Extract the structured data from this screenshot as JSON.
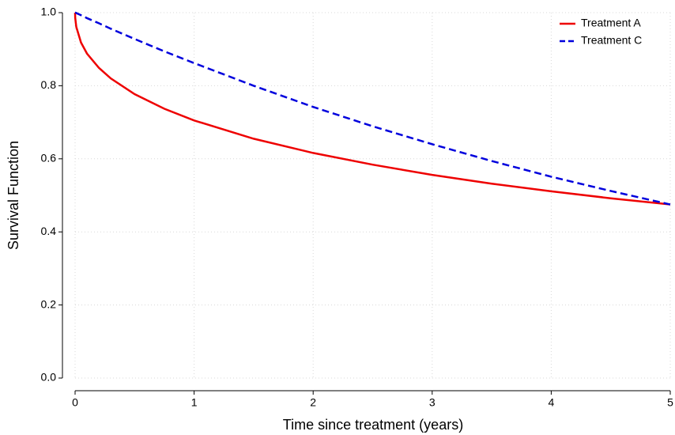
{
  "chart_data": {
    "type": "line",
    "xlabel": "Time since treatment (years)",
    "ylabel": "Survival Function",
    "x": [
      0,
      0.001,
      0.01,
      0.05,
      0.1,
      0.2,
      0.3,
      0.5,
      0.75,
      1,
      1.5,
      2,
      2.5,
      3,
      3.5,
      4,
      4.5,
      5
    ],
    "series": [
      {
        "name": "Treatment A",
        "color": "#ee0000",
        "dash": false,
        "values": [
          1,
          0.986,
          0.961,
          0.918,
          0.888,
          0.849,
          0.82,
          0.777,
          0.737,
          0.705,
          0.655,
          0.616,
          0.584,
          0.556,
          0.532,
          0.511,
          0.492,
          0.475
        ]
      },
      {
        "name": "Treatment C",
        "color": "#0000dd",
        "dash": true,
        "values": [
          1,
          1,
          0.999,
          0.993,
          0.985,
          0.971,
          0.956,
          0.928,
          0.894,
          0.862,
          0.8,
          0.742,
          0.689,
          0.64,
          0.594,
          0.551,
          0.512,
          0.475
        ]
      }
    ],
    "xlim": [
      0,
      5
    ],
    "xticks": [
      0,
      1,
      2,
      3,
      4,
      5
    ],
    "ylim": [
      0,
      1
    ],
    "yticks": [
      {
        "value": 0,
        "label": "0.0"
      },
      {
        "value": 0.2,
        "label": "0.2"
      },
      {
        "value": 0.4,
        "label": "0.4"
      },
      {
        "value": 0.6,
        "label": "0.6"
      },
      {
        "value": 0.8,
        "label": "0.8"
      },
      {
        "value": 1,
        "label": "1.0"
      }
    ],
    "grid": true,
    "legend": "upper right"
  }
}
